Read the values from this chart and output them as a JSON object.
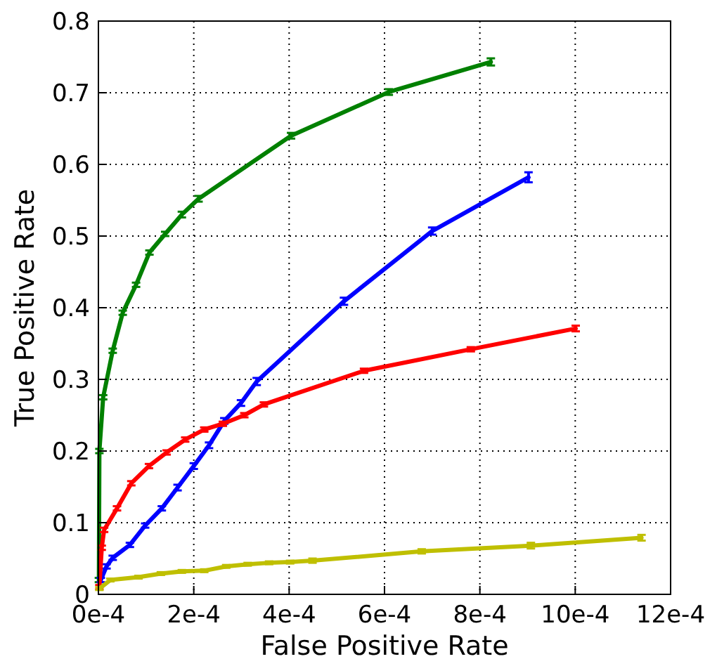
{
  "chart_data": {
    "type": "line",
    "xlabel": "False Positive Rate",
    "ylabel": "True Positive Rate",
    "xlim": [
      0,
      0.0012
    ],
    "ylim": [
      0,
      0.8
    ],
    "xticks": [
      {
        "value": 0,
        "label": "0e-4"
      },
      {
        "value": 0.0002,
        "label": "2e-4"
      },
      {
        "value": 0.0004,
        "label": "4e-4"
      },
      {
        "value": 0.0006,
        "label": "6e-4"
      },
      {
        "value": 0.0008,
        "label": "8e-4"
      },
      {
        "value": 0.001,
        "label": "10e-4"
      },
      {
        "value": 0.0012,
        "label": "12e-4"
      }
    ],
    "yticks": [
      0,
      0.1,
      0.2,
      0.3,
      0.4,
      0.5,
      0.6,
      0.7,
      0.8
    ],
    "grid": true,
    "line_style": "solid",
    "marker": "none",
    "series": [
      {
        "color": "#008000",
        "x": [
          1e-06,
          2e-06,
          1e-05,
          3e-05,
          5.1e-05,
          7.9e-05,
          0.000107,
          0.00014,
          0.000175,
          0.00021,
          0.000404,
          0.000609,
          0.000823
        ],
        "values": [
          0.02,
          0.2,
          0.275,
          0.34,
          0.393,
          0.432,
          0.477,
          0.503,
          0.53,
          0.552,
          0.64,
          0.701,
          0.743
        ],
        "errors": [
          0.003,
          0.003,
          0.003,
          0.003,
          0.003,
          0.003,
          0.003,
          0.003,
          0.004,
          0.004,
          0.004,
          0.004,
          0.005
        ]
      },
      {
        "color": "#0000ff",
        "x": [
          5e-06,
          1.7e-05,
          3e-05,
          6.6e-05,
          9.8e-05,
          0.000133,
          0.000166,
          0.0002,
          0.000232,
          0.000264,
          0.000299,
          0.000332,
          0.000515,
          0.0007,
          0.000902
        ],
        "values": [
          0.02,
          0.039,
          0.051,
          0.069,
          0.096,
          0.12,
          0.149,
          0.179,
          0.208,
          0.242,
          0.267,
          0.297,
          0.409,
          0.507,
          0.582
        ],
        "errors": [
          0.003,
          0.003,
          0.003,
          0.003,
          0.003,
          0.003,
          0.004,
          0.004,
          0.004,
          0.004,
          0.004,
          0.005,
          0.005,
          0.005,
          0.007
        ]
      },
      {
        "color": "#ff0000",
        "x": [
          2e-06,
          7e-06,
          1.2e-05,
          3.9e-05,
          6.9e-05,
          0.000106,
          0.000143,
          0.000182,
          0.000222,
          0.000261,
          0.000306,
          0.000347,
          0.000557,
          0.000781,
          0.001001
        ],
        "values": [
          0.01,
          0.065,
          0.09,
          0.12,
          0.155,
          0.179,
          0.198,
          0.216,
          0.23,
          0.238,
          0.25,
          0.265,
          0.312,
          0.342,
          0.371
        ],
        "errors": [
          0.003,
          0.003,
          0.003,
          0.003,
          0.003,
          0.003,
          0.003,
          0.003,
          0.003,
          0.003,
          0.003,
          0.003,
          0.003,
          0.003,
          0.004
        ]
      },
      {
        "color": "#bfbf00",
        "x": [
          2e-06,
          2.5e-05,
          8.4e-05,
          0.000131,
          0.000175,
          0.000222,
          0.000268,
          0.000313,
          0.000358,
          0.000402,
          0.000449,
          0.000678,
          0.000907,
          0.001139
        ],
        "values": [
          0.008,
          0.02,
          0.024,
          0.029,
          0.032,
          0.033,
          0.039,
          0.042,
          0.044,
          0.045,
          0.047,
          0.06,
          0.068,
          0.079
        ],
        "errors": [
          0.002,
          0.002,
          0.002,
          0.002,
          0.002,
          0.002,
          0.002,
          0.002,
          0.002,
          0.002,
          0.003,
          0.003,
          0.004,
          0.004
        ]
      }
    ]
  }
}
